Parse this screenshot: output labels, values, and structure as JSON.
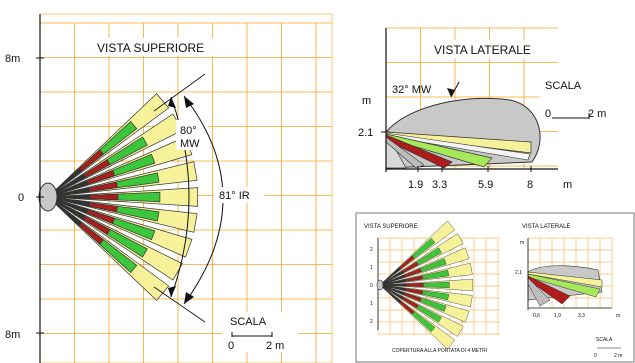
{
  "top_view": {
    "title": "VISTA SUPERIORE",
    "y_top": "8m",
    "y_mid": "0",
    "y_bottom": "8m",
    "mw_angle": "80°",
    "mw_label": "MW",
    "ir_angle": "81° IR",
    "scale_title": "SCALA",
    "scale_zero": "0",
    "scale_value": "2 m"
  },
  "side_view": {
    "title": "VISTA LATERALE",
    "mw_angle": "32° MW",
    "y_unit": "m",
    "height": "2.1",
    "x_ticks": [
      "1.9",
      "3.3",
      "5.9",
      "8"
    ],
    "x_unit": "m",
    "scale_title": "SCALA",
    "scale_zero": "0",
    "scale_value": "2 m"
  },
  "inset": {
    "title_top": "VISTA SUPERIORE",
    "title_side": "VISTA LATERALE",
    "y_ticks": [
      "2",
      "1",
      "0",
      "1",
      "2"
    ],
    "y_unit": "m",
    "height": "2,1",
    "x_ticks": [
      "0,6",
      "1,9",
      "3,3"
    ],
    "x_unit": "m",
    "caption": "COPERTURA ALLA PORTATA DI 4 METRI",
    "scale_title": "SCALA",
    "scale_zero": "0",
    "scale_value": "2 m"
  },
  "colors": {
    "grid": "#f5a623",
    "yellow": "#f6f29a",
    "green": "#3cc63c",
    "light_green": "#a6e85a",
    "red": "#b01c1c",
    "gray": "#c8c8c8",
    "dark": "#333333"
  }
}
